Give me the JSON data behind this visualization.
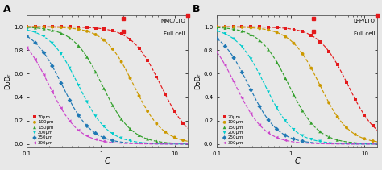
{
  "panel_A_title": "NMC/LTO",
  "panel_B_title": "LFP/LTO",
  "full_cell_label": "Full cell",
  "xlabel": "C",
  "ylabel": "DoDᵣ",
  "thicknesses": [
    "70μm",
    "100μm",
    "150μm",
    "200μm",
    "250μm",
    "300μm"
  ],
  "colors": [
    "#e31a1c",
    "#cc9900",
    "#33a02c",
    "#00cccc",
    "#1f78b4",
    "#cc44cc"
  ],
  "markers": [
    "s",
    "o",
    "^",
    "v",
    "D",
    "<"
  ],
  "thickness_params_A": [
    {
      "C0": 6.5,
      "k": 2.2
    },
    {
      "C0": 2.8,
      "k": 2.2
    },
    {
      "C0": 1.05,
      "k": 2.2
    },
    {
      "C0": 0.5,
      "k": 2.2
    },
    {
      "C0": 0.3,
      "k": 2.2
    },
    {
      "C0": 0.2,
      "k": 2.2
    }
  ],
  "thickness_params_B": [
    {
      "C0": 6.0,
      "k": 2.2
    },
    {
      "C0": 2.5,
      "k": 2.2
    },
    {
      "C0": 0.95,
      "k": 2.2
    },
    {
      "C0": 0.45,
      "k": 2.2
    },
    {
      "C0": 0.27,
      "k": 2.2
    },
    {
      "C0": 0.18,
      "k": 2.2
    }
  ],
  "panel_labels": [
    "A",
    "B"
  ],
  "bg_color": "#e8e8e8",
  "grid_color": "#ffffff",
  "scatter_C_values": [
    0.1,
    0.13,
    0.17,
    0.22,
    0.29,
    0.38,
    0.5,
    0.65,
    0.85,
    1.1,
    1.45,
    1.9,
    2.5,
    3.3,
    4.3,
    5.7,
    7.5,
    10.0,
    13.0
  ],
  "xlim": [
    0.1,
    15.0
  ],
  "ylim": [
    -0.03,
    1.1
  ],
  "yticks": [
    0.0,
    0.2,
    0.4,
    0.6,
    0.8,
    1.0
  ],
  "xticks": [
    0.1,
    1,
    10
  ]
}
